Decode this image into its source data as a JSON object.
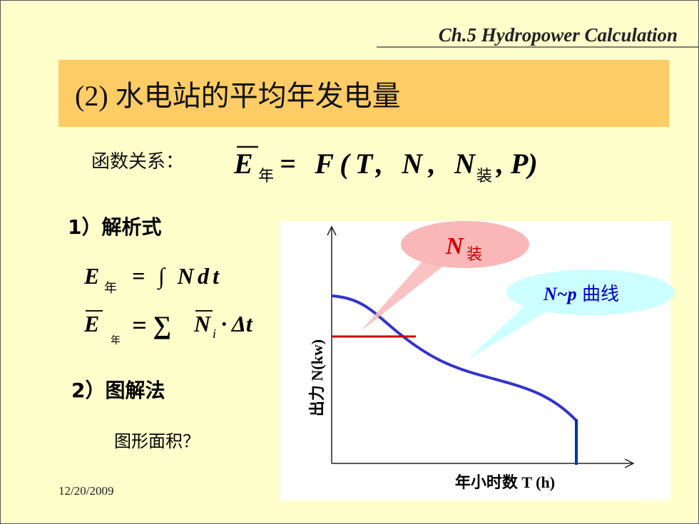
{
  "header": {
    "section": "Ch.5 Hydropower Calculation"
  },
  "title": "(2) 水电站的平均年发电量",
  "relation": {
    "label": "函数关系：",
    "formula": {
      "symbol": "E",
      "symbol_sub": "年",
      "body": "= F(T, N, N",
      "body_sub": "装",
      "tail": ", P)"
    }
  },
  "analytic": {
    "heading": "1）解析式",
    "formula1": {
      "symbol": "E",
      "symbol_sub": "年",
      "body": "= ∫ Ndt"
    },
    "formula2": {
      "symbol": "E",
      "symbol_sub": "年",
      "op": "= ∑",
      "term": "N",
      "term_sub": "i",
      "tail": "· Δt"
    }
  },
  "graphical": {
    "heading": "2）图解法",
    "question": "图形面积？"
  },
  "date": "12/20/2009",
  "diagram": {
    "y_axis_label": "出力 N(kw)",
    "x_axis_label": "年小时数 T (h)",
    "callout_installed": {
      "symbol": "N",
      "sub": "装"
    },
    "callout_curve": {
      "symbol": "N~p",
      "text": "曲线"
    }
  }
}
